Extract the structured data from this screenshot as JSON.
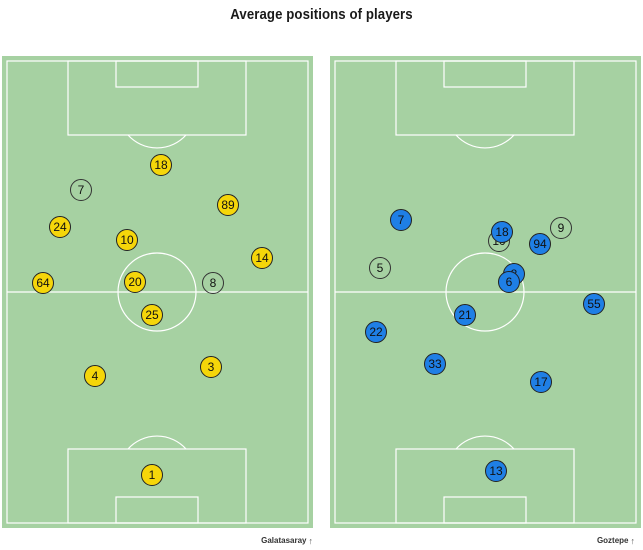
{
  "title": "Average positions of players",
  "colors": {
    "pitch": "#a6d1a2",
    "lines": "#ffffff",
    "home": "#f5d60a",
    "away": "#1f7fe5"
  },
  "teams": [
    {
      "name": "Galatasaray",
      "arrow": "up-arrow-icon"
    },
    {
      "name": "Goztepe",
      "arrow": "up-arrow-icon"
    }
  ],
  "players": {
    "home": [
      {
        "n": "18",
        "sub": false
      },
      {
        "n": "7",
        "sub": true
      },
      {
        "n": "89",
        "sub": false
      },
      {
        "n": "24",
        "sub": false
      },
      {
        "n": "10",
        "sub": false
      },
      {
        "n": "14",
        "sub": false
      },
      {
        "n": "64",
        "sub": false
      },
      {
        "n": "20",
        "sub": false
      },
      {
        "n": "8",
        "sub": true
      },
      {
        "n": "25",
        "sub": false
      },
      {
        "n": "4",
        "sub": false
      },
      {
        "n": "3",
        "sub": false
      },
      {
        "n": "1",
        "sub": false
      }
    ],
    "away": [
      {
        "n": "7",
        "sub": false
      },
      {
        "n": "9",
        "sub": true
      },
      {
        "n": "10",
        "sub": true
      },
      {
        "n": "18",
        "sub": false
      },
      {
        "n": "94",
        "sub": false
      },
      {
        "n": "5",
        "sub": true
      },
      {
        "n": "8",
        "sub": false
      },
      {
        "n": "6",
        "sub": false
      },
      {
        "n": "55",
        "sub": false
      },
      {
        "n": "21",
        "sub": false
      },
      {
        "n": "22",
        "sub": false
      },
      {
        "n": "33",
        "sub": false
      },
      {
        "n": "17",
        "sub": false
      },
      {
        "n": "13",
        "sub": false
      }
    ]
  }
}
